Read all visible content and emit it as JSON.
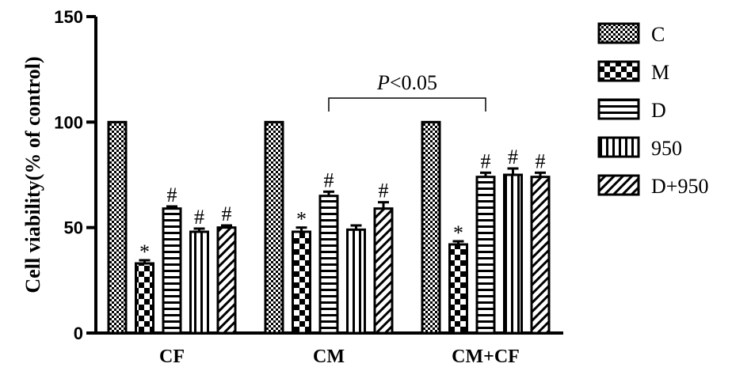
{
  "chart_data": {
    "type": "bar",
    "ylabel": "Cell viability(% of control)",
    "xlabel": "",
    "ylim": [
      0,
      150
    ],
    "yticks": [
      "0",
      "50",
      "100",
      "150"
    ],
    "categories": [
      "CF",
      "CM",
      "CM+CF"
    ],
    "series": [
      {
        "name": "C",
        "pattern": "checker-fine",
        "values": [
          100,
          100,
          100
        ],
        "errors": [
          0,
          0,
          0
        ],
        "annotations": [
          "",
          "",
          ""
        ]
      },
      {
        "name": "M",
        "pattern": "checker-big",
        "values": [
          33,
          48,
          42
        ],
        "errors": [
          1.5,
          2,
          1.5
        ],
        "annotations": [
          "*",
          "*",
          "*"
        ]
      },
      {
        "name": "D",
        "pattern": "horizontal",
        "values": [
          59,
          65,
          74
        ],
        "errors": [
          1,
          2,
          2
        ],
        "annotations": [
          "#",
          "#",
          "#"
        ]
      },
      {
        "name": "950",
        "pattern": "vertical",
        "values": [
          48,
          49,
          75
        ],
        "errors": [
          1.5,
          2,
          3
        ],
        "annotations": [
          "#",
          "",
          "#"
        ]
      },
      {
        "name": "D+950",
        "pattern": "diagonal",
        "values": [
          50,
          59,
          74
        ],
        "errors": [
          1,
          3,
          2
        ],
        "annotations": [
          "#",
          "#",
          "#"
        ]
      }
    ],
    "comparison": {
      "label_italic": "P",
      "label_rest": "<0.05",
      "from_category": "CM",
      "to_category": "CM+CF"
    },
    "legend_position": "right",
    "grid": false
  }
}
